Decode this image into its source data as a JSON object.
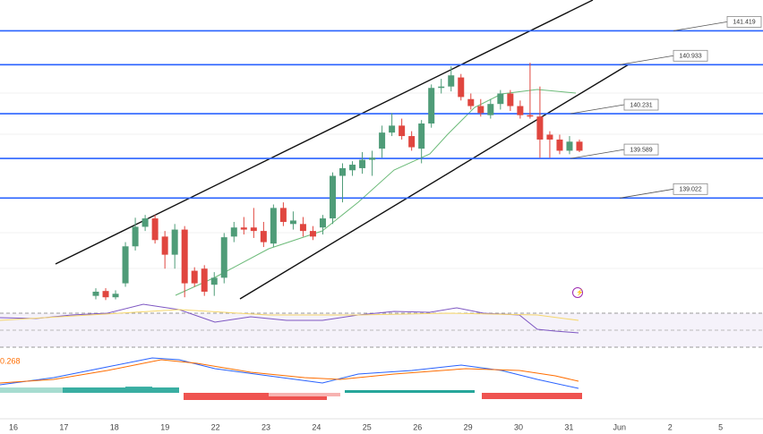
{
  "chart_data": {
    "type": "candlestick",
    "open": [
      137.62,
      137.69,
      137.6,
      137.8,
      138.33,
      138.61,
      138.73,
      138.47,
      138.21,
      138.57,
      137.98,
      138.01,
      137.78,
      137.88,
      138.47,
      138.6,
      138.6,
      138.55,
      138.37,
      138.88,
      138.65,
      138.65,
      138.55,
      138.6,
      138.73,
      139.34,
      139.42,
      139.45,
      139.57,
      139.73,
      139.96,
      140.06,
      139.91,
      139.73,
      140.09,
      140.6,
      140.62,
      140.75,
      140.44,
      140.34,
      140.21,
      140.37,
      140.52,
      140.34,
      140.21,
      140.19,
      139.93,
      139.86,
      139.7,
      139.83
    ],
    "high": [
      137.73,
      137.73,
      137.7,
      138.39,
      138.74,
      138.78,
      138.78,
      138.55,
      138.65,
      138.62,
      138.03,
      138.06,
      137.96,
      138.52,
      138.68,
      138.75,
      138.88,
      138.68,
      138.93,
      138.96,
      138.83,
      138.75,
      138.62,
      138.78,
      139.39,
      139.52,
      139.55,
      139.68,
      139.7,
      140.06,
      140.24,
      140.16,
      139.98,
      140.14,
      140.65,
      140.73,
      140.91,
      140.8,
      140.52,
      140.44,
      140.44,
      140.57,
      140.57,
      140.42,
      140.96,
      140.62,
      139.98,
      139.93,
      139.91,
      139.86
    ],
    "low": [
      137.57,
      137.56,
      137.57,
      137.75,
      138.27,
      138.55,
      138.37,
      138.01,
      138.01,
      137.6,
      137.75,
      137.62,
      137.62,
      137.8,
      138.39,
      138.5,
      138.45,
      138.32,
      138.32,
      138.62,
      138.57,
      138.47,
      138.42,
      138.5,
      138.65,
      138.96,
      139.34,
      139.37,
      139.34,
      139.6,
      139.91,
      139.86,
      139.7,
      139.52,
      140.03,
      140.52,
      140.55,
      140.42,
      140.29,
      140.19,
      140.16,
      140.29,
      140.27,
      140.16,
      140.16,
      139.6,
      139.6,
      139.65,
      139.65,
      139.68
    ],
    "close": [
      137.68,
      137.6,
      137.65,
      138.33,
      138.61,
      138.73,
      138.42,
      138.21,
      138.57,
      137.8,
      137.8,
      137.68,
      137.88,
      138.46,
      138.6,
      138.57,
      138.55,
      138.39,
      138.88,
      138.68,
      138.7,
      138.55,
      138.47,
      138.73,
      139.34,
      139.45,
      139.5,
      139.57,
      139.6,
      139.96,
      140.06,
      139.91,
      139.75,
      140.09,
      140.6,
      140.62,
      140.78,
      140.47,
      140.34,
      140.24,
      140.37,
      140.52,
      140.34,
      140.21,
      140.19,
      139.86,
      139.86,
      139.7,
      139.83,
      139.7
    ],
    "up_color": "#4f9c78",
    "down_color": "#e0463f",
    "ylim": [
      137.5,
      141.86
    ],
    "levels": [
      141.419,
      140.933,
      140.231,
      139.589,
      139.022
    ],
    "level_color": "#2962ff",
    "categories": [
      "16",
      "17",
      "18",
      "19",
      "22",
      "23",
      "24",
      "25",
      "26",
      "29",
      "30",
      "31",
      "Jun",
      "2",
      "5"
    ],
    "macd_label": "0.268"
  }
}
